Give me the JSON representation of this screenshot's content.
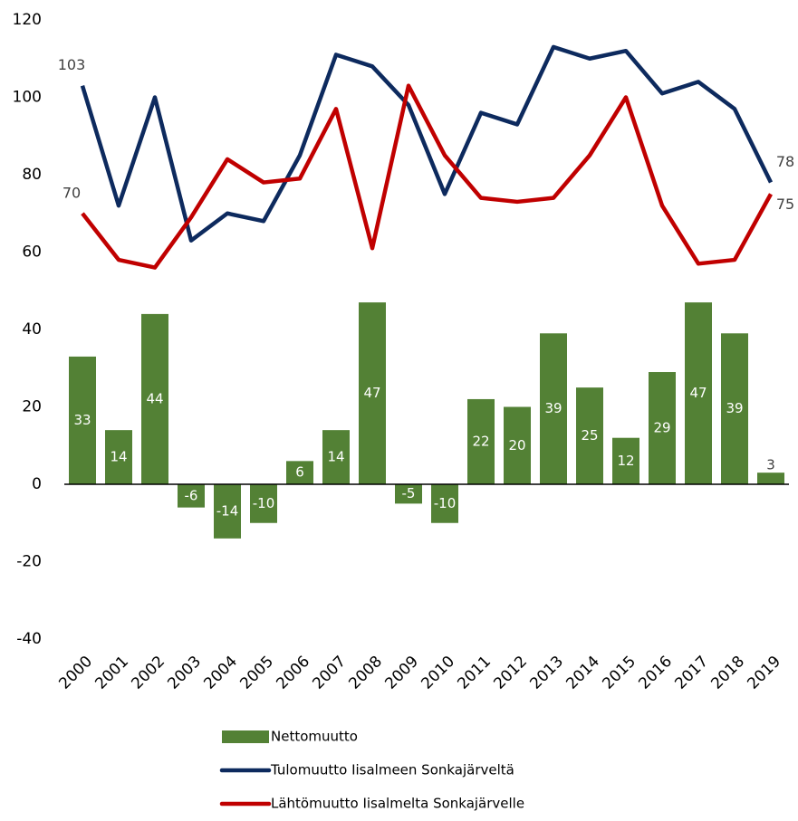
{
  "chart_data": {
    "type": "bar_line",
    "categories": [
      "2000",
      "2001",
      "2002",
      "2003",
      "2004",
      "2005",
      "2006",
      "2007",
      "2008",
      "2009",
      "2010",
      "2011",
      "2012",
      "2013",
      "2014",
      "2015",
      "2016",
      "2017",
      "2018",
      "2019"
    ],
    "series": [
      {
        "name": "Nettomuutto",
        "type": "bar",
        "color": "#538135",
        "values": [
          33,
          14,
          44,
          -6,
          -14,
          -10,
          6,
          14,
          47,
          -5,
          -10,
          22,
          20,
          39,
          25,
          12,
          29,
          47,
          39,
          3
        ]
      },
      {
        "name": "Tulomuutto Iisalmeen Sonkajärveltä",
        "type": "line",
        "color": "#0d2a5e",
        "values": [
          103,
          72,
          100,
          63,
          70,
          68,
          85,
          111,
          108,
          98,
          75,
          96,
          93,
          113,
          110,
          112,
          101,
          104,
          97,
          78
        ],
        "value_labels": [
          "103",
          null,
          null,
          null,
          null,
          null,
          null,
          null,
          null,
          null,
          null,
          null,
          null,
          null,
          null,
          null,
          null,
          null,
          null,
          "78"
        ]
      },
      {
        "name": "Lähtömuutto Iisalmelta Sonkajärvelle",
        "type": "line",
        "color": "#c00000",
        "values": [
          70,
          58,
          56,
          69,
          84,
          78,
          79,
          97,
          61,
          103,
          85,
          74,
          73,
          74,
          85,
          100,
          72,
          57,
          58,
          75
        ],
        "value_labels": [
          "70",
          null,
          null,
          null,
          null,
          null,
          null,
          null,
          null,
          null,
          null,
          null,
          null,
          null,
          null,
          null,
          null,
          null,
          null,
          "75"
        ]
      }
    ],
    "ylim": [
      -40,
      120
    ],
    "yticks": [
      -40,
      -20,
      0,
      20,
      40,
      60,
      80,
      100,
      120
    ],
    "grid": false,
    "legend": "bottom"
  }
}
